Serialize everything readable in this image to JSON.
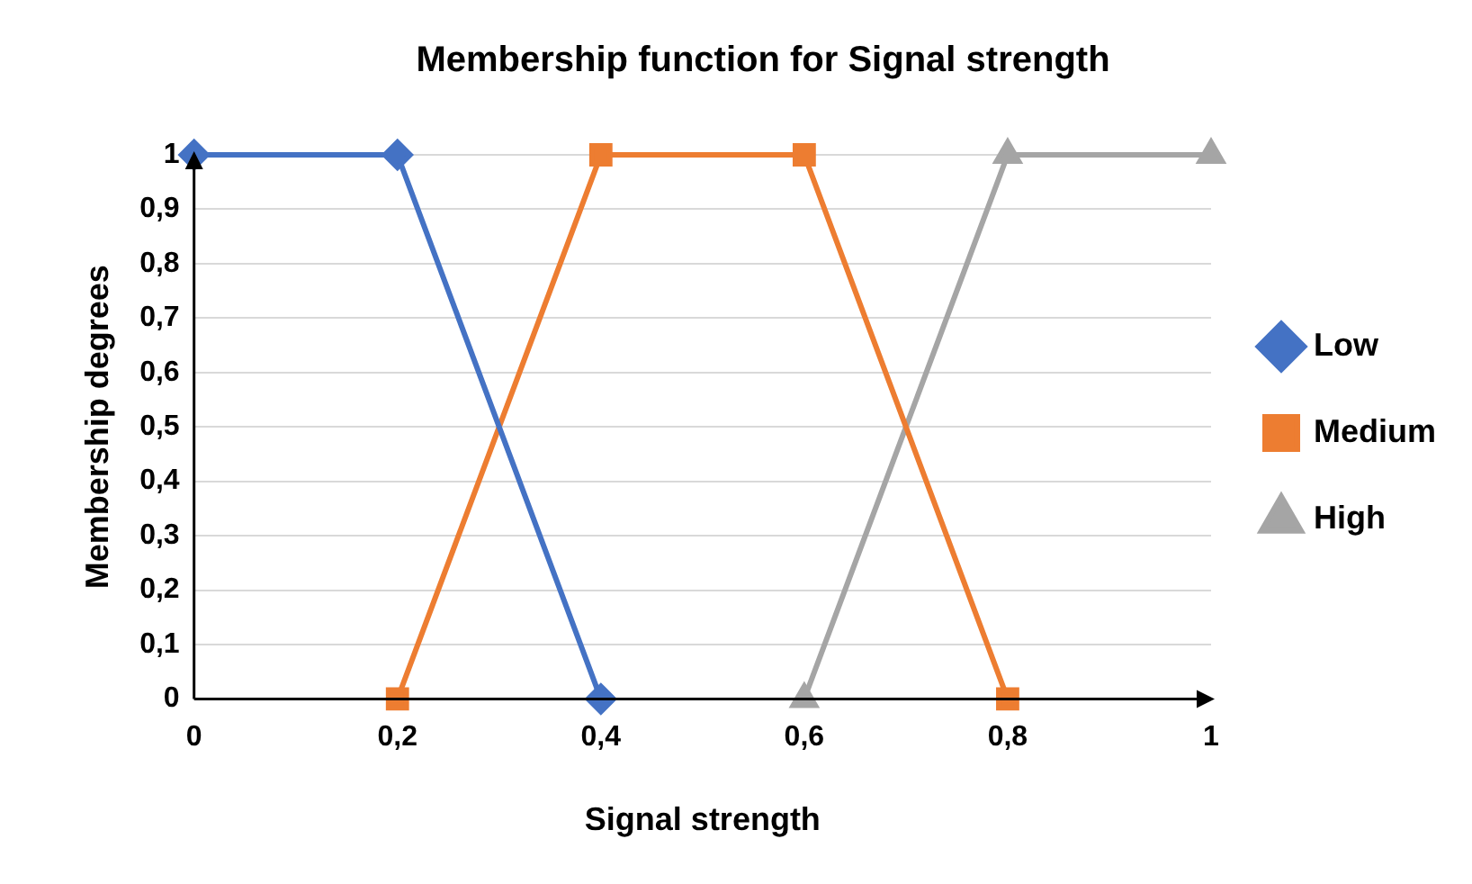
{
  "chart_data": {
    "type": "line",
    "title": "Membership function for Signal strength",
    "xlabel": "Signal strength",
    "ylabel": "Membership degrees",
    "xlim": [
      0,
      1
    ],
    "xticks": [
      0,
      {
        "value": 0.2,
        "label": "0,2"
      },
      {
        "value": 0.4,
        "label": "0,4"
      },
      {
        "value": 0.6,
        "label": "0,6"
      },
      {
        "value": 0.8,
        "label": "0,8"
      },
      1
    ],
    "ylim": [
      0,
      1
    ],
    "yticks": [
      0,
      {
        "value": 0.1,
        "label": "0,1"
      },
      {
        "value": 0.2,
        "label": "0,2"
      },
      {
        "value": 0.3,
        "label": "0,3"
      },
      {
        "value": 0.4,
        "label": "0,4"
      },
      {
        "value": 0.5,
        "label": "0,5"
      },
      {
        "value": 0.6,
        "label": "0,6"
      },
      {
        "value": 0.7,
        "label": "0,7"
      },
      {
        "value": 0.8,
        "label": "0,8"
      },
      {
        "value": 0.9,
        "label": "0,9"
      },
      1
    ],
    "grid": "y",
    "legend": "right",
    "line_style": "solid",
    "series": [
      {
        "name": "Low",
        "color": "#4472c4",
        "marker": "diamond",
        "x": [
          0,
          0.2,
          0.4
        ],
        "values": [
          1,
          1,
          0
        ]
      },
      {
        "name": "Medium",
        "color": "#ed7d31",
        "marker": "square",
        "x": [
          0.2,
          0.4,
          0.6,
          0.8
        ],
        "values": [
          0,
          1,
          1,
          0
        ]
      },
      {
        "name": "High",
        "color": "#a5a5a5",
        "marker": "triangle",
        "x": [
          0.6,
          0.8,
          1
        ],
        "values": [
          0,
          1,
          1
        ]
      }
    ]
  }
}
